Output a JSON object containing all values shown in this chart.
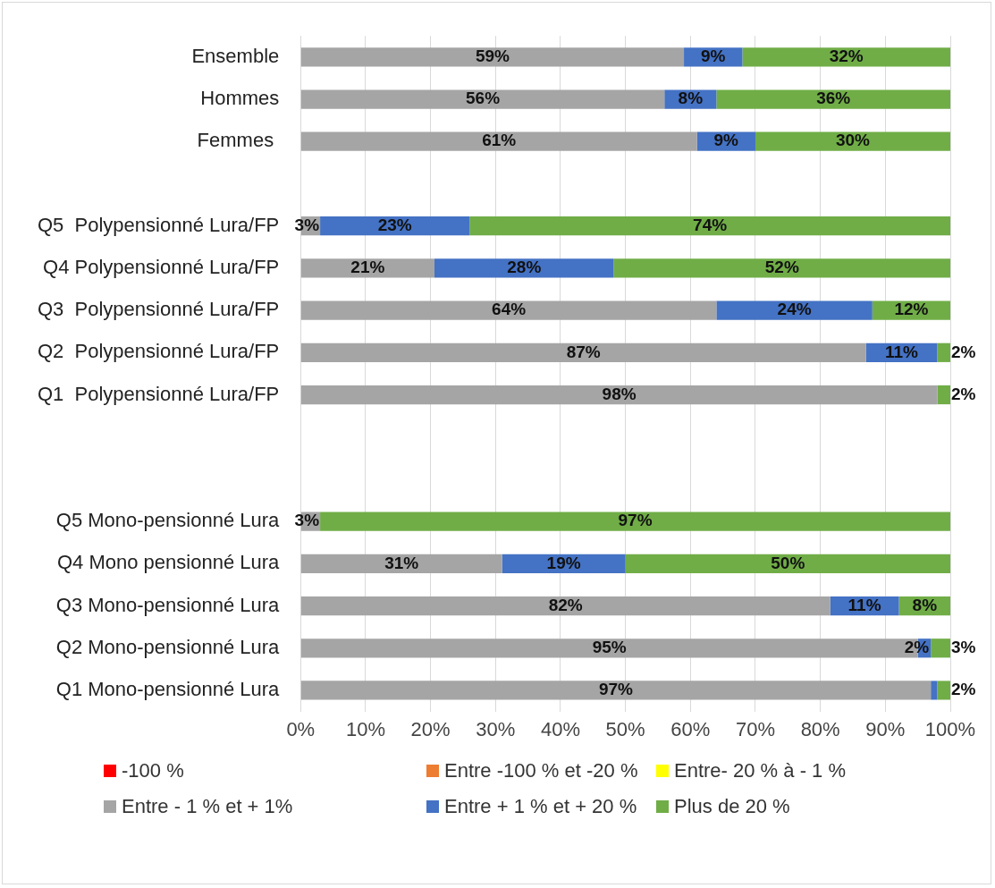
{
  "chart_data": {
    "type": "bar",
    "orientation": "horizontal",
    "stacked": true,
    "categories": [
      "Ensemble",
      "Hommes",
      "Femmes ",
      null,
      "Q5  Polypensionné Lura/FP",
      "Q4 Polypensionné Lura/FP",
      "Q3  Polypensionné Lura/FP",
      "Q2  Polypensionné Lura/FP",
      "Q1  Polypensionné Lura/FP",
      null,
      null,
      "Q5 Mono-pensionné Lura",
      "Q4 Mono pensionné Lura",
      "Q3 Mono-pensionné Lura",
      "Q2 Mono-pensionné Lura",
      "Q1 Mono-pensionné Lura"
    ],
    "series": [
      {
        "name": "-100 %",
        "color": "#ff0000",
        "values": [
          0,
          0,
          0,
          null,
          0,
          0,
          0,
          0,
          0,
          null,
          null,
          0,
          0,
          0,
          0,
          0
        ]
      },
      {
        "name": "Entre -100 % et -20 %",
        "color": "#ed7d31",
        "values": [
          0,
          0,
          0,
          null,
          0,
          0,
          0,
          0,
          0,
          null,
          null,
          0,
          0,
          0,
          0,
          0
        ]
      },
      {
        "name": "Entre- 20 % à - 1 %",
        "color": "#ffff00",
        "values": [
          0,
          0,
          0,
          null,
          0,
          0,
          0,
          0,
          0,
          null,
          null,
          0,
          0,
          0,
          0,
          0
        ]
      },
      {
        "name": "Entre - 1 % et + 1%",
        "color": "#a5a5a5",
        "values": [
          59,
          56,
          61,
          null,
          3,
          20.6,
          64,
          87,
          98,
          null,
          null,
          3,
          31,
          81.5,
          95,
          97
        ],
        "value_labels": [
          "59%",
          "56%",
          "61%",
          null,
          "3%",
          "21%",
          "64%",
          "87%",
          "98%",
          null,
          null,
          "3%",
          "31%",
          "82%",
          "95%",
          "97%"
        ]
      },
      {
        "name": "Entre + 1 % et + 20 %",
        "color": "#4472c4",
        "values": [
          9,
          8,
          9,
          null,
          23,
          27.6,
          24,
          11,
          0,
          null,
          null,
          0,
          19,
          10.6,
          2,
          1
        ],
        "value_labels": [
          "9%",
          "8%",
          "9%",
          null,
          "23%",
          "28%",
          "24%",
          "11%",
          null,
          null,
          null,
          null,
          "19%",
          "11%",
          "2%",
          null
        ]
      },
      {
        "name": "Plus de 20 %",
        "color": "#70ad47",
        "values": [
          32,
          36,
          30,
          null,
          74,
          51.8,
          12,
          2,
          2,
          null,
          null,
          97,
          50,
          7.9,
          3,
          2
        ],
        "value_labels": [
          "32%",
          "36%",
          "30%",
          null,
          "74%",
          "52%",
          "12%",
          "2%",
          "2%",
          null,
          null,
          "97%",
          "50%",
          "8%",
          "3%",
          "2%"
        ]
      }
    ],
    "xlim": [
      0,
      100
    ],
    "xticks": [
      {
        "value": 0,
        "label": "0%"
      },
      {
        "value": 10,
        "label": "10%"
      },
      {
        "value": 20,
        "label": "20%"
      },
      {
        "value": 30,
        "label": "30%"
      },
      {
        "value": 40,
        "label": "40%"
      },
      {
        "value": 50,
        "label": "50%"
      },
      {
        "value": 60,
        "label": "60%"
      },
      {
        "value": 70,
        "label": "70%"
      },
      {
        "value": 80,
        "label": "80%"
      },
      {
        "value": 90,
        "label": "90%"
      },
      {
        "value": 100,
        "label": "100%"
      }
    ],
    "grid": "x",
    "legend": "bottom"
  }
}
